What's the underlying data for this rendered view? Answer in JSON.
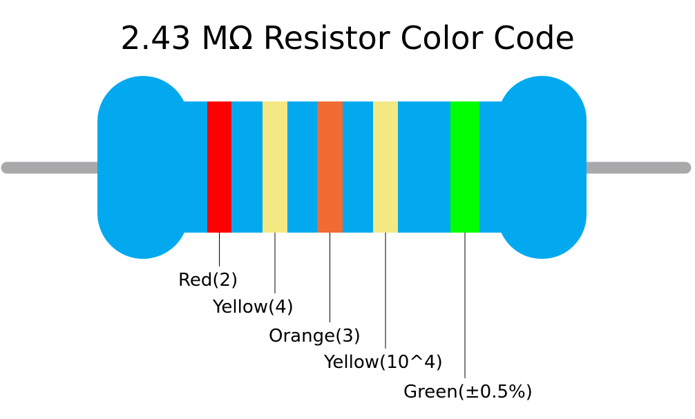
{
  "title": "2.43 MΩ Resistor Color Code",
  "colors": {
    "body": "#03A9EE",
    "lead": "#A9A9AB",
    "leader_line": "#000000"
  },
  "bands": [
    {
      "color_name": "Red",
      "hex": "#FF0000",
      "label": "Red(2)"
    },
    {
      "color_name": "Yellow",
      "hex": "#F3E882",
      "label": "Yellow(4)"
    },
    {
      "color_name": "Orange",
      "hex": "#F16B33",
      "label": "Orange(3)"
    },
    {
      "color_name": "Yellow",
      "hex": "#F3E882",
      "label": "Yellow(10^4)"
    },
    {
      "color_name": "Green",
      "hex": "#00FF00",
      "label": "Green(±0.5%)"
    }
  ]
}
